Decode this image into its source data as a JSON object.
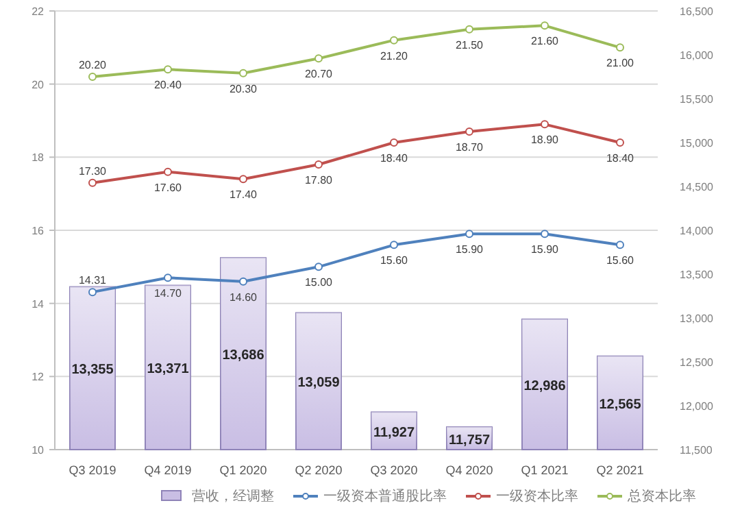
{
  "chart_data": {
    "type": "bar",
    "categories": [
      "Q3 2019",
      "Q4 2019",
      "Q1 2020",
      "Q2 2020",
      "Q3 2020",
      "Q4 2020",
      "Q1 2021",
      "Q2 2021"
    ],
    "series": [
      {
        "name": "营收，经调整",
        "axis": "y2",
        "color": "#c9bee4",
        "values": [
          13355,
          13371,
          13686,
          13059,
          11927,
          11757,
          12986,
          12565
        ],
        "value_labels": [
          "13,355",
          "13,371",
          "13,686",
          "13,059",
          "11,927",
          "11,757",
          "12,986",
          "12,565"
        ]
      },
      {
        "name": "一级资本普通股比率",
        "type": "line",
        "axis": "y",
        "color": "#4f81bd",
        "values": [
          14.31,
          14.7,
          14.6,
          15.0,
          15.6,
          15.9,
          15.9,
          15.6
        ],
        "value_labels": [
          "14.31",
          "14.70",
          "14.60",
          "15.00",
          "15.60",
          "15.90",
          "15.90",
          "15.60"
        ]
      },
      {
        "name": "一级资本比率",
        "type": "line",
        "axis": "y",
        "color": "#c0504d",
        "values": [
          17.3,
          17.6,
          17.4,
          17.8,
          18.4,
          18.7,
          18.9,
          18.4
        ],
        "value_labels": [
          "17.30",
          "17.60",
          "17.40",
          "17.80",
          "18.40",
          "18.70",
          "18.90",
          "18.40"
        ]
      },
      {
        "name": "总资本比率",
        "type": "line",
        "axis": "y",
        "color": "#9bbb59",
        "values": [
          20.2,
          20.4,
          20.3,
          20.7,
          21.2,
          21.5,
          21.6,
          21.0
        ],
        "value_labels": [
          "20.20",
          "20.40",
          "20.30",
          "20.70",
          "21.20",
          "21.50",
          "21.60",
          "21.00"
        ]
      }
    ],
    "ylim": [
      10,
      22
    ],
    "yticks": [
      10,
      12,
      14,
      16,
      18,
      20,
      22
    ],
    "y2lim": [
      11500,
      16500
    ],
    "y2ticks": [
      {
        "value": 11500,
        "label": "11,500"
      },
      {
        "value": 12000,
        "label": "12,000"
      },
      {
        "value": 12500,
        "label": "12,500"
      },
      {
        "value": 13000,
        "label": "13,000"
      },
      {
        "value": 13500,
        "label": "13,500"
      },
      {
        "value": 14000,
        "label": "14,000"
      },
      {
        "value": 14500,
        "label": "14,500"
      },
      {
        "value": 15000,
        "label": "15,000"
      },
      {
        "value": 15500,
        "label": "15,500"
      },
      {
        "value": 16000,
        "label": "16,000"
      },
      {
        "value": 16500,
        "label": "16,500"
      }
    ],
    "grid": "y",
    "legend": "bottom",
    "marker": "circle"
  }
}
